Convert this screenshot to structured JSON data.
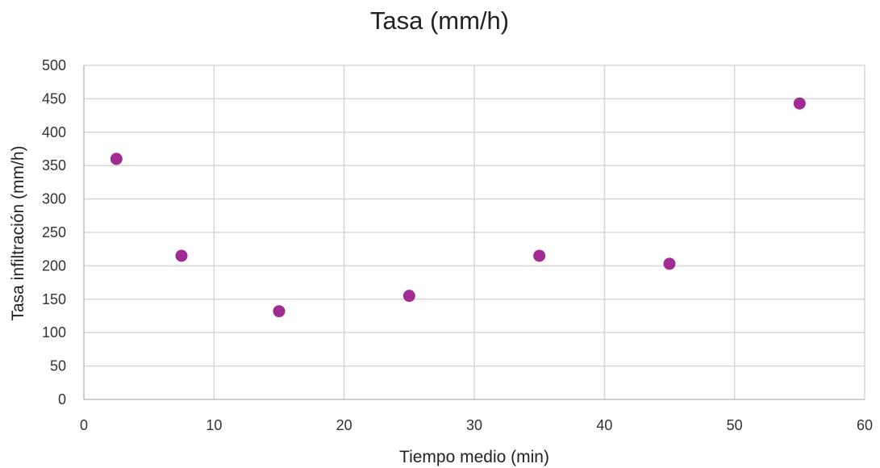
{
  "chart_data": {
    "type": "scatter",
    "title": "Tasa (mm/h)",
    "xlabel": "Tiempo medio (min)",
    "ylabel": "Tasa infiltración (mm/h)",
    "xlim": [
      0,
      60
    ],
    "ylim": [
      0,
      500
    ],
    "xticks": [
      0,
      10,
      20,
      30,
      40,
      50,
      60
    ],
    "yticks": [
      0,
      50,
      100,
      150,
      200,
      250,
      300,
      350,
      400,
      450,
      500
    ],
    "grid": true,
    "legend": "none",
    "marker_color": "#A02B93",
    "series": [
      {
        "x": [
          2.5,
          7.5,
          15,
          25,
          35,
          45,
          55
        ],
        "y": [
          360,
          215,
          132,
          155,
          215,
          203,
          443
        ]
      }
    ]
  }
}
